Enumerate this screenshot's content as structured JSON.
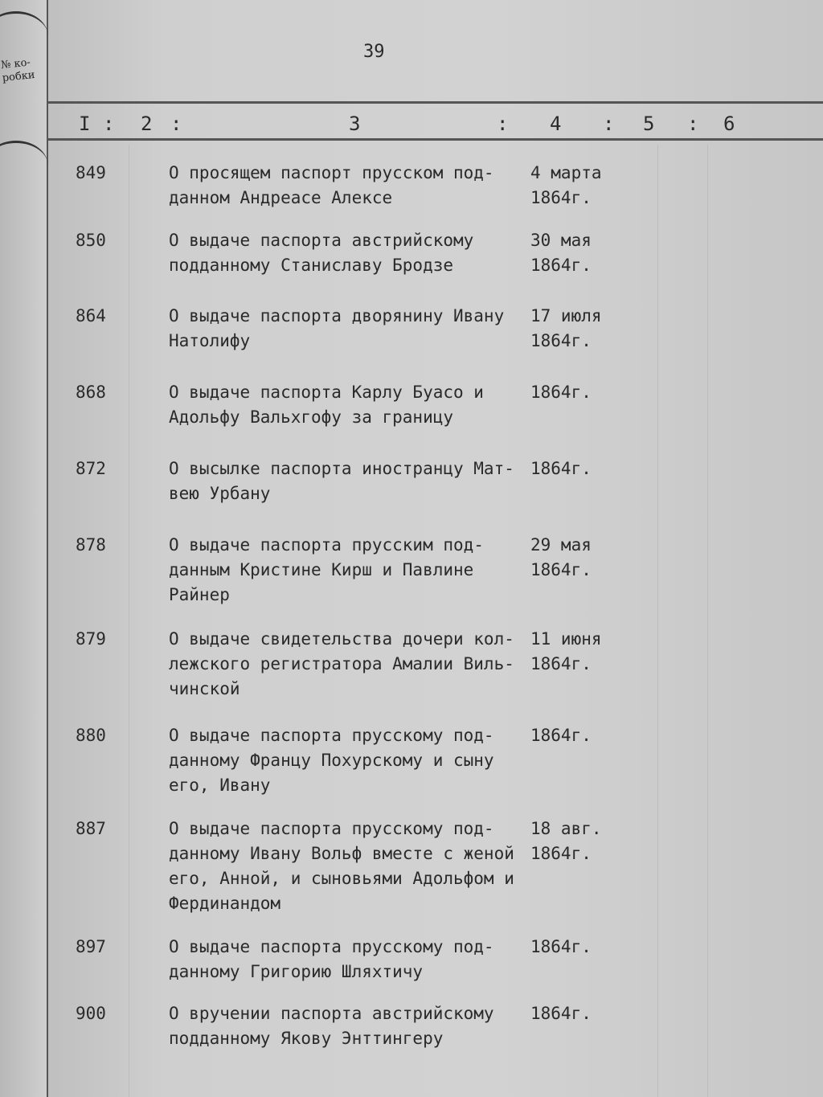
{
  "left_margin_label": "№ ко-\nробки",
  "page_number": "39",
  "column_headers": [
    "I",
    ":",
    "2",
    ":",
    "3",
    ":",
    "4",
    ":",
    "5",
    ":",
    "6"
  ],
  "entries": [
    {
      "number": "849",
      "description": "О просящем паспорт прусском под-\nданном Андреасе Алексе",
      "date": "4 марта\n1864г."
    },
    {
      "number": "850",
      "description": "О выдаче паспорта австрийскому\nподданному Станиславу Бродзе",
      "date": "30 мая\n1864г."
    },
    {
      "number": "864",
      "description": "О выдаче паспорта дворянину Ивану\nНатолифу",
      "date": "17 июля\n1864г."
    },
    {
      "number": "868",
      "description": "О выдаче паспорта Карлу Буасо и\nАдольфу Вальхгофу  за границу",
      "date": "1864г."
    },
    {
      "number": "872",
      "description": "О высылке паспорта иностранцу Мат-\nвею Урбану",
      "date": "1864г."
    },
    {
      "number": "878",
      "description": "О выдаче паспорта прусским под-\nданным Кристине Кирш и Павлине\nРайнер",
      "date": "29 мая\n1864г."
    },
    {
      "number": "879",
      "description": "О выдаче свидетельства дочери кол-\nлежского регистратора Амалии Виль-\nчинской",
      "date": "11 июня\n1864г."
    },
    {
      "number": "880",
      "description": "О выдаче паспорта прусскому под-\nданному Францу Похурскому и сыну\nего, Ивану",
      "date": "1864г."
    },
    {
      "number": "887",
      "description": "О выдаче паспорта прусскому под-\nданному Ивану Вольф вместе с женой\nего, Анной, и сыновьями Адольфом и\nФердинандом",
      "date": "18 авг.\n1864г."
    },
    {
      "number": "897",
      "description": "О выдаче паспорта прусскому под-\nданному Григорию Шляхтичу",
      "date": "1864г."
    },
    {
      "number": "900",
      "description": "О вручении паспорта австрийскому\nподданному Якову Энттингеру",
      "date": "1864г."
    }
  ]
}
